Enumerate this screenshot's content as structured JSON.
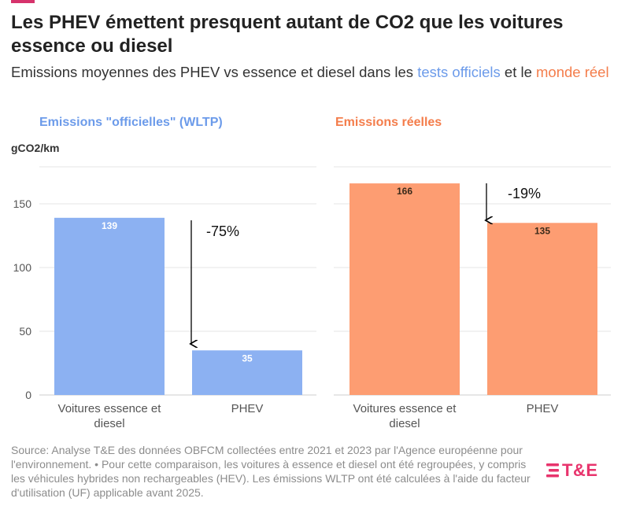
{
  "header": {
    "title": "Les PHEV émettent presquent autant de CO2 que les voitures essence ou diesel",
    "subtitle_before": "Emissions moyennes des PHEV vs essence et diesel dans les ",
    "subtitle_highlight_blue": "tests officiels",
    "subtitle_middle": " et le ",
    "subtitle_highlight_orange": "monde réel"
  },
  "colors": {
    "official": "#8cb1f2",
    "real": "#fd9d72",
    "official_text": "#6c9bea",
    "real_text": "#f47d4b",
    "accent": "#d6336c",
    "logo": "#e8346d"
  },
  "chart_data": [
    {
      "type": "bar",
      "title": "Emissions \"officielles\" (WLTP)",
      "ylabel": "gCO2/km",
      "categories": [
        "Voitures essence et diesel",
        "PHEV"
      ],
      "values": [
        139,
        35
      ],
      "value_labels": [
        "139",
        "35"
      ],
      "ylim": [
        0,
        175
      ],
      "yticks": [
        0,
        50,
        100,
        150
      ],
      "annotation": "-75%",
      "grid": true
    },
    {
      "type": "bar",
      "title": "Emissions réelles",
      "ylabel": "",
      "categories": [
        "Voitures essence et diesel",
        "PHEV"
      ],
      "values": [
        166,
        135
      ],
      "value_labels": [
        "166",
        "135"
      ],
      "ylim": [
        0,
        175
      ],
      "annotation": "-19%",
      "grid": true
    }
  ],
  "footer": {
    "source": "Source: Analyse T&E des données OBFCM collectées entre 2021 et 2023 par l'Agence européenne pour l'environnement. • Pour cette comparaison, les voitures à essence et diesel ont été regroupées, y compris les véhicules hybrides non rechargeables (HEV). Les émissions WLTP ont été calculées à l'aide du facteur d'utilisation (UF) applicable avant 2025."
  },
  "logo": {
    "text": "T&E",
    "icon": "stripes-icon"
  }
}
